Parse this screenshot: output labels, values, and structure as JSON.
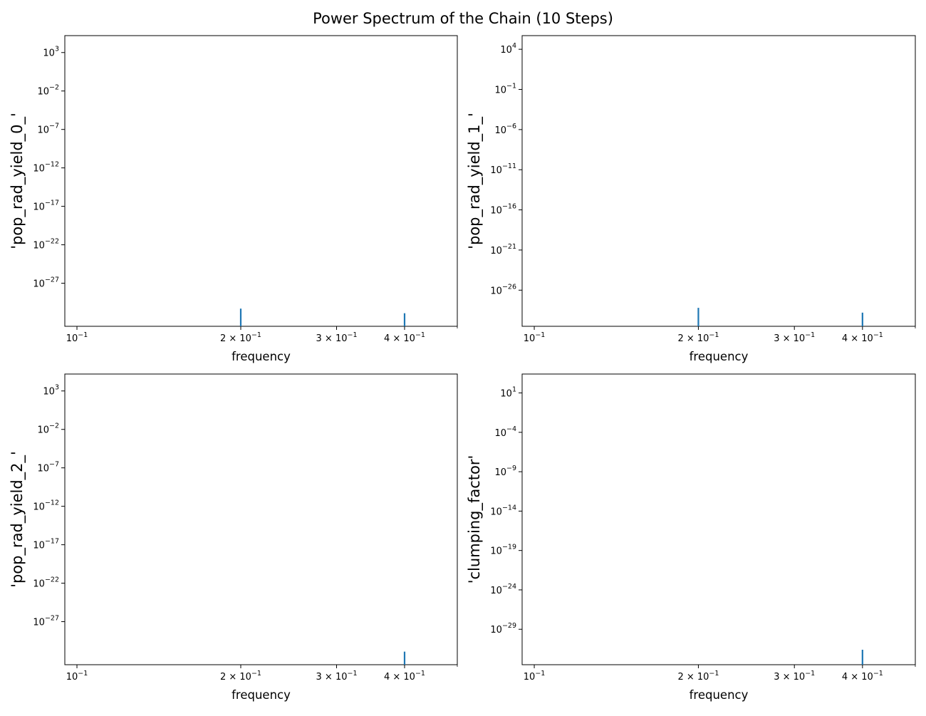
{
  "figure": {
    "title": "Power Spectrum of the Chain (10 Steps)"
  },
  "colors": {
    "series": "#1f77b4",
    "axes": "#000000",
    "background": "#ffffff"
  },
  "chart_data": [
    {
      "type": "line",
      "xlabel": "frequency",
      "ylabel": "'pop_rad_yield_0_'",
      "xscale": "log",
      "yscale": "log",
      "xlim": [
        0.095,
        0.5
      ],
      "ylim_exp": [
        -32.6,
        5.2
      ],
      "grid": false,
      "x_ticks": [
        {
          "mant": "",
          "exp": "-1",
          "value": 0.1
        },
        {
          "mant": "2 × ",
          "exp": "-1",
          "value": 0.2
        },
        {
          "mant": "3 × ",
          "exp": "-1",
          "value": 0.3
        },
        {
          "mant": "4 × ",
          "exp": "-1",
          "value": 0.4
        }
      ],
      "x_minor_ticks": [
        0.5
      ],
      "y_ticks": [
        {
          "exp": "3",
          "value": 3
        },
        {
          "exp": "-2",
          "value": -2
        },
        {
          "exp": "-7",
          "value": -7
        },
        {
          "exp": "-12",
          "value": -12
        },
        {
          "exp": "-17",
          "value": -17
        },
        {
          "exp": "-22",
          "value": -22
        },
        {
          "exp": "-27",
          "value": -27
        }
      ],
      "series": [
        {
          "spikes": [
            {
              "x": 0.2,
              "log10_power": -30.3
            },
            {
              "x": 0.4,
              "log10_power": -30.9
            }
          ]
        }
      ]
    },
    {
      "type": "line",
      "xlabel": "frequency",
      "ylabel": "'pop_rad_yield_1_'",
      "xscale": "log",
      "yscale": "log",
      "xlim": [
        0.095,
        0.5
      ],
      "ylim_exp": [
        -30.5,
        5.7
      ],
      "grid": false,
      "x_ticks": [
        {
          "mant": "",
          "exp": "-1",
          "value": 0.1
        },
        {
          "mant": "2 × ",
          "exp": "-1",
          "value": 0.2
        },
        {
          "mant": "3 × ",
          "exp": "-1",
          "value": 0.3
        },
        {
          "mant": "4 × ",
          "exp": "-1",
          "value": 0.4
        }
      ],
      "x_minor_ticks": [
        0.5
      ],
      "y_ticks": [
        {
          "exp": "4",
          "value": 4
        },
        {
          "exp": "-1",
          "value": -1
        },
        {
          "exp": "-6",
          "value": -6
        },
        {
          "exp": "-11",
          "value": -11
        },
        {
          "exp": "-16",
          "value": -16
        },
        {
          "exp": "-21",
          "value": -21
        },
        {
          "exp": "-26",
          "value": -26
        }
      ],
      "series": [
        {
          "spikes": [
            {
              "x": 0.2,
              "log10_power": -28.2
            },
            {
              "x": 0.4,
              "log10_power": -28.8
            }
          ]
        }
      ]
    },
    {
      "type": "line",
      "xlabel": "frequency",
      "ylabel": "'pop_rad_yield_2_'",
      "xscale": "log",
      "yscale": "log",
      "xlim": [
        0.095,
        0.5
      ],
      "ylim_exp": [
        -32.6,
        5.2
      ],
      "grid": false,
      "x_ticks": [
        {
          "mant": "",
          "exp": "-1",
          "value": 0.1
        },
        {
          "mant": "2 × ",
          "exp": "-1",
          "value": 0.2
        },
        {
          "mant": "3 × ",
          "exp": "-1",
          "value": 0.3
        },
        {
          "mant": "4 × ",
          "exp": "-1",
          "value": 0.4
        }
      ],
      "x_minor_ticks": [
        0.5
      ],
      "y_ticks": [
        {
          "exp": "3",
          "value": 3
        },
        {
          "exp": "-2",
          "value": -2
        },
        {
          "exp": "-7",
          "value": -7
        },
        {
          "exp": "-12",
          "value": -12
        },
        {
          "exp": "-17",
          "value": -17
        },
        {
          "exp": "-22",
          "value": -22
        },
        {
          "exp": "-27",
          "value": -27
        }
      ],
      "series": [
        {
          "spikes": [
            {
              "x": 0.4,
              "log10_power": -30.9
            }
          ]
        }
      ]
    },
    {
      "type": "line",
      "xlabel": "frequency",
      "ylabel": "'clumping_factor'",
      "xscale": "log",
      "yscale": "log",
      "xlim": [
        0.095,
        0.5
      ],
      "ylim_exp": [
        -33.5,
        3.4
      ],
      "grid": false,
      "x_ticks": [
        {
          "mant": "",
          "exp": "-1",
          "value": 0.1
        },
        {
          "mant": "2 × ",
          "exp": "-1",
          "value": 0.2
        },
        {
          "mant": "3 × ",
          "exp": "-1",
          "value": 0.3
        },
        {
          "mant": "4 × ",
          "exp": "-1",
          "value": 0.4
        }
      ],
      "x_minor_ticks": [
        0.5
      ],
      "y_ticks": [
        {
          "exp": "1",
          "value": 1
        },
        {
          "exp": "-4",
          "value": -4
        },
        {
          "exp": "-9",
          "value": -9
        },
        {
          "exp": "-14",
          "value": -14
        },
        {
          "exp": "-19",
          "value": -19
        },
        {
          "exp": "-24",
          "value": -24
        },
        {
          "exp": "-29",
          "value": -29
        }
      ],
      "series": [
        {
          "spikes": [
            {
              "x": 0.4,
              "log10_power": -31.6
            }
          ]
        }
      ]
    }
  ]
}
